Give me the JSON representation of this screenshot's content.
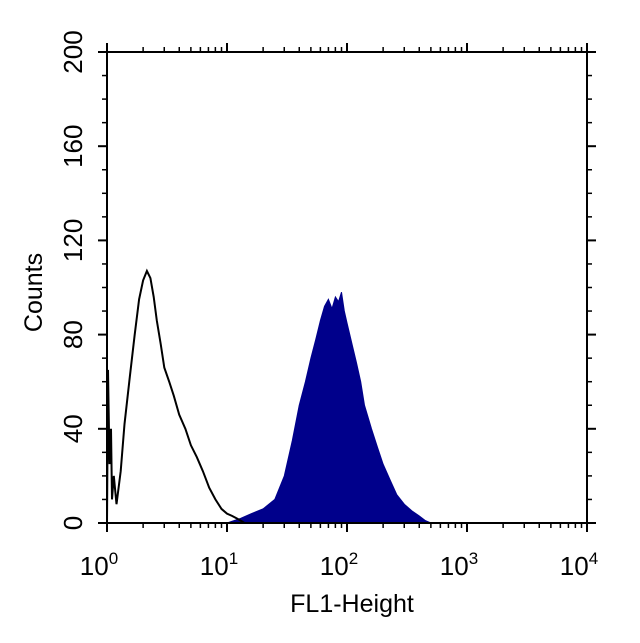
{
  "chart_data": {
    "type": "area",
    "title": "",
    "xlabel": "FL1-Height",
    "ylabel": "Counts",
    "xscale": "log",
    "xlim": [
      1,
      10000
    ],
    "ylim": [
      0,
      200
    ],
    "x_ticks": [
      {
        "base": "10",
        "exp": "0"
      },
      {
        "base": "10",
        "exp": "1"
      },
      {
        "base": "10",
        "exp": "2"
      },
      {
        "base": "10",
        "exp": "3"
      },
      {
        "base": "10",
        "exp": "4"
      }
    ],
    "y_ticks": [
      "0",
      "40",
      "80",
      "120",
      "160",
      "200"
    ],
    "y_tick_values": [
      0,
      40,
      80,
      120,
      160,
      200
    ],
    "grid": false,
    "series": [
      {
        "style": "outline",
        "color": "#000000",
        "x": [
          1.0,
          1.02,
          1.05,
          1.08,
          1.1,
          1.14,
          1.2,
          1.3,
          1.4,
          1.55,
          1.7,
          1.85,
          2.0,
          2.15,
          2.3,
          2.45,
          2.6,
          2.8,
          3.0,
          3.3,
          3.6,
          4.0,
          4.5,
          5.0,
          5.6,
          6.3,
          7.1,
          8.0,
          9.0,
          10.0,
          11.0,
          12.0,
          13.0,
          14.0
        ],
        "y": [
          0,
          65,
          25,
          40,
          10,
          20,
          8,
          22,
          42,
          62,
          80,
          95,
          103,
          107,
          104,
          96,
          86,
          76,
          66,
          60,
          54,
          46,
          40,
          33,
          28,
          22,
          15,
          10,
          6,
          4,
          3,
          2,
          1,
          0
        ]
      },
      {
        "style": "filled",
        "color": "#00008b",
        "x": [
          10,
          13,
          16,
          20,
          25,
          30,
          35,
          40,
          45,
          50,
          55,
          60,
          65,
          70,
          75,
          80,
          85,
          90,
          95,
          100,
          110,
          120,
          130,
          140,
          160,
          180,
          200,
          230,
          260,
          300,
          350,
          400,
          450,
          500
        ],
        "y": [
          0,
          2,
          4,
          6,
          10,
          20,
          35,
          50,
          60,
          70,
          78,
          86,
          92,
          95,
          91,
          96,
          94,
          98,
          90,
          85,
          76,
          68,
          60,
          50,
          40,
          32,
          25,
          18,
          12,
          8,
          5,
          3,
          1,
          0
        ]
      }
    ]
  }
}
